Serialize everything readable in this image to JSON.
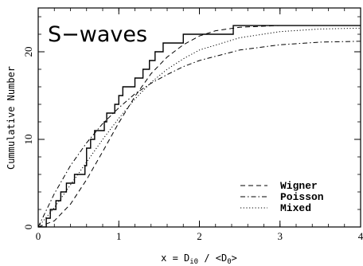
{
  "chart_data": {
    "type": "line",
    "title": "S−waves",
    "xlabel": "x = D",
    "xlabel_sub": "i0",
    "xlabel_rest": " / <D",
    "xlabel_sub2": "0",
    "xlabel_end": ">",
    "ylabel": "Cummulative Number",
    "xlim": [
      0,
      4
    ],
    "ylim": [
      0,
      25
    ],
    "xticks": [
      0,
      1,
      2,
      3,
      4
    ],
    "yticks": [
      0,
      10,
      20
    ],
    "legend_position": "bottom-right",
    "series": [
      {
        "name": "",
        "style": "solid-step",
        "x": [
          0.0,
          0.1,
          0.15,
          0.22,
          0.28,
          0.35,
          0.45,
          0.58,
          0.6,
          0.65,
          0.7,
          0.82,
          0.85,
          0.95,
          1.0,
          1.05,
          1.2,
          1.3,
          1.38,
          1.45,
          1.55,
          1.65,
          1.72,
          1.8,
          2.42,
          2.45,
          4.0
        ],
        "y": [
          0,
          1,
          2,
          3,
          4,
          5,
          6,
          7,
          9,
          10,
          11,
          12,
          13,
          14,
          15,
          16,
          17,
          18,
          19,
          20,
          21,
          21,
          21,
          22,
          23,
          23,
          23
        ]
      },
      {
        "name": "Wigner",
        "style": "dashed",
        "x": [
          0.0,
          0.2,
          0.4,
          0.6,
          0.8,
          1.0,
          1.2,
          1.4,
          1.6,
          1.8,
          2.0,
          2.2,
          2.5,
          3.0,
          3.5,
          4.0
        ],
        "y": [
          0,
          0.7,
          2.6,
          5.4,
          8.6,
          11.9,
          14.9,
          17.5,
          19.4,
          20.8,
          21.8,
          22.4,
          22.8,
          23.0,
          23.0,
          23.0
        ]
      },
      {
        "name": "Poisson",
        "style": "dashdot",
        "x": [
          0.0,
          0.2,
          0.4,
          0.6,
          0.8,
          1.0,
          1.2,
          1.4,
          1.6,
          1.8,
          2.0,
          2.5,
          3.0,
          3.5,
          4.0
        ],
        "y": [
          0,
          3.8,
          7.0,
          9.6,
          11.8,
          13.6,
          15.2,
          16.4,
          17.4,
          18.3,
          19.0,
          20.2,
          20.8,
          21.1,
          21.2
        ]
      },
      {
        "name": "Mixed",
        "style": "dotted",
        "x": [
          0.0,
          0.2,
          0.4,
          0.6,
          0.8,
          1.0,
          1.2,
          1.4,
          1.6,
          1.8,
          2.0,
          2.5,
          3.0,
          3.5,
          4.0
        ],
        "y": [
          0,
          2.2,
          4.8,
          7.4,
          10.0,
          12.4,
          14.6,
          16.5,
          18.0,
          19.2,
          20.2,
          21.6,
          22.3,
          22.6,
          22.7
        ]
      }
    ]
  }
}
